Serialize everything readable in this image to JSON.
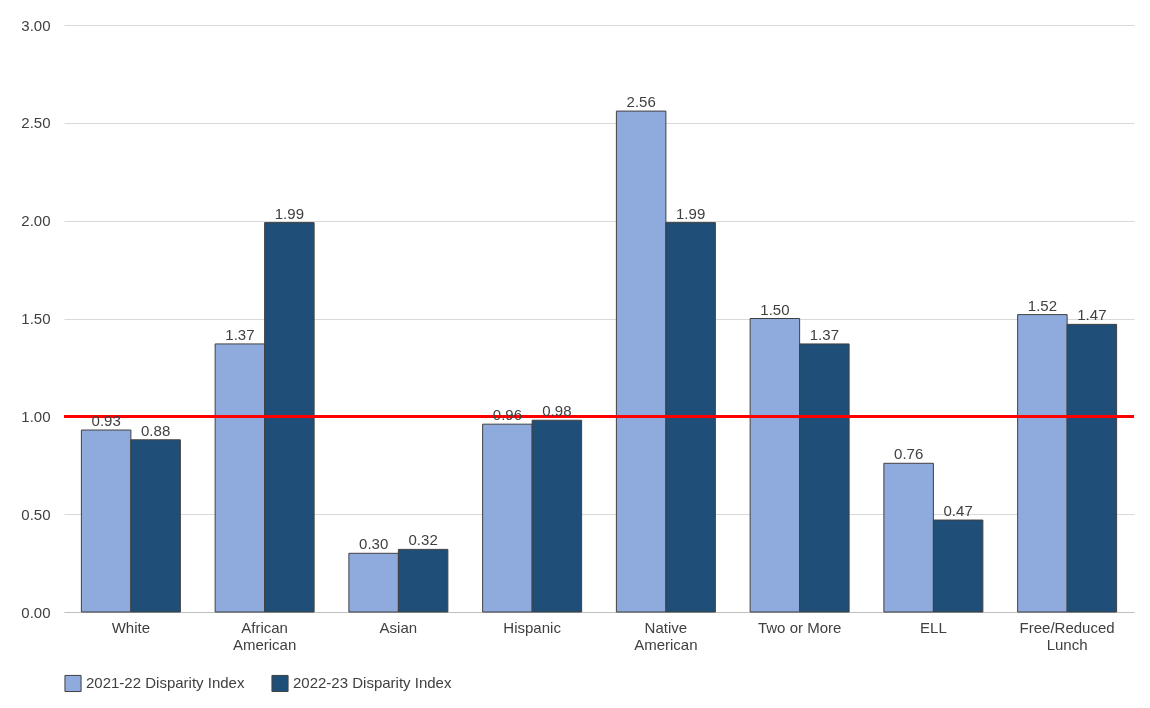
{
  "chart_data": {
    "type": "bar",
    "categories": [
      "White",
      "African American",
      "Asian",
      "Hispanic",
      "Native American",
      "Two or More",
      "ELL",
      "Free/Reduced Lunch"
    ],
    "series": [
      {
        "name": "2021-22 Disparity Index",
        "color": "#8faadc",
        "values": [
          0.93,
          1.37,
          0.3,
          0.96,
          2.56,
          1.5,
          0.76,
          1.52
        ],
        "value_labels": [
          "0.93",
          "1.37",
          "0.30",
          "0.96",
          "2.56",
          "1.50",
          "0.76",
          "1.52"
        ]
      },
      {
        "name": "2022-23 Disparity Index",
        "color": "#1f4e79",
        "values": [
          0.88,
          1.99,
          0.32,
          0.98,
          1.99,
          1.37,
          0.47,
          1.47
        ],
        "value_labels": [
          "0.88",
          "1.99",
          "0.32",
          "0.98",
          "1.99",
          "1.37",
          "0.47",
          "1.47"
        ]
      }
    ],
    "ylim": [
      0,
      3
    ],
    "yticks": [
      {
        "value": 0,
        "label": "0.00"
      },
      {
        "value": 0.5,
        "label": "0.50"
      },
      {
        "value": 1,
        "label": "1.00"
      },
      {
        "value": 1.5,
        "label": "1.50"
      },
      {
        "value": 2,
        "label": "2.00"
      },
      {
        "value": 2.5,
        "label": "2.50"
      },
      {
        "value": 3,
        "label": "3.00"
      }
    ],
    "ref_lines": [
      {
        "axis": "y",
        "value": 1,
        "color": "#ff0000"
      }
    ],
    "grid": "y",
    "legend": "bottom"
  }
}
